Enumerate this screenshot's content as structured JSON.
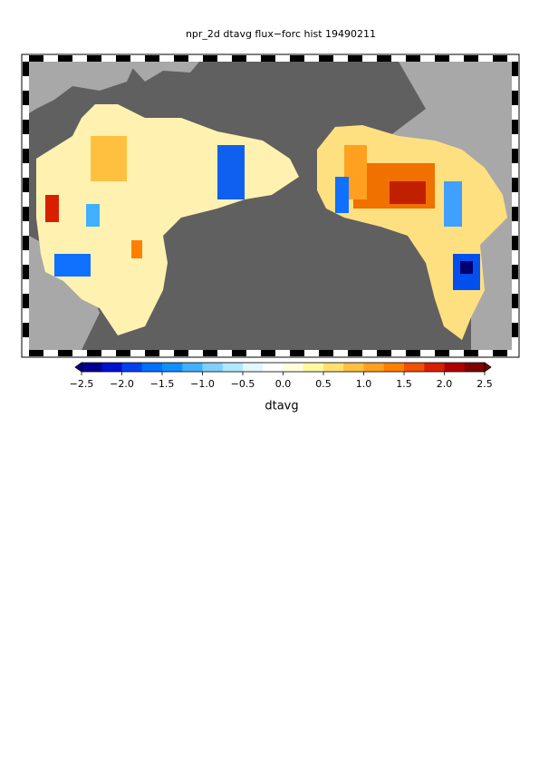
{
  "title": "npr_2d dtavg flux−forc hist 19490211",
  "colorbar": {
    "label": "dtavg",
    "lim": [
      -2.5,
      2.5
    ],
    "ticks": [
      {
        "value": -2.5,
        "label": "−2.5"
      },
      {
        "value": -2.0,
        "label": "−2.0"
      },
      {
        "value": -1.5,
        "label": "−1.5"
      },
      {
        "value": -1.0,
        "label": "−1.0"
      },
      {
        "value": -0.5,
        "label": "−0.5"
      },
      {
        "value": 0,
        "label": "0.0"
      },
      0.5,
      {
        "value": 1.0,
        "label": "1.0"
      },
      1.5,
      {
        "value": 2.0,
        "label": "2.0"
      },
      2.5
    ],
    "colors": [
      "#000090",
      "#0010d0",
      "#0040f0",
      "#0070ff",
      "#1090ff",
      "#40b0ff",
      "#80d0ff",
      "#b0e8ff",
      "#e0f8ff",
      "#ffffff",
      "#ffffe0",
      "#fff8a0",
      "#ffe070",
      "#ffc040",
      "#ffa020",
      "#ff8000",
      "#f05000",
      "#d82000",
      "#b00000",
      "#800000"
    ]
  }
}
